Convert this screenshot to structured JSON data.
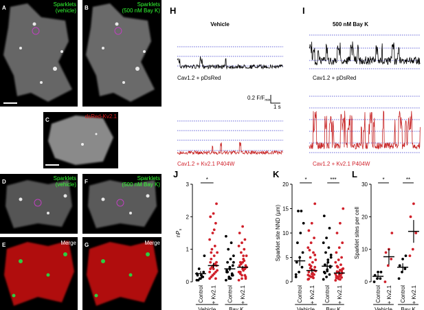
{
  "panels": {
    "A": {
      "label": "A",
      "caption": [
        "Sparklets",
        "(vehicle)"
      ]
    },
    "B": {
      "label": "B",
      "caption": [
        "Sparklets",
        "(500 nM Bay K)"
      ]
    },
    "C": {
      "label": "C",
      "caption": [
        "dsRed-Kv2.1"
      ]
    },
    "D": {
      "label": "D",
      "caption": [
        "Sparklets",
        "(vehicle)"
      ]
    },
    "E": {
      "label": "E",
      "caption": [
        "Merge"
      ]
    },
    "F": {
      "label": "F",
      "caption": [
        "Sparklets",
        "(500 nM Bay K)"
      ]
    },
    "G": {
      "label": "G",
      "caption": [
        "Merge"
      ]
    },
    "H": {
      "label": "H",
      "title": "Vehicle",
      "trace_labels": [
        "Cav1.2 + pDsRed",
        "Cav1.2 + Kv2.1 P404W"
      ]
    },
    "I": {
      "label": "I",
      "title": "500 nM Bay K",
      "trace_labels": [
        "Cav1.2 + pDsRed",
        "Cav1.2 + Kv2.1 P404W"
      ]
    }
  },
  "scale_bar": {
    "y_label": "0.2 F/F",
    "y_subscript": "min",
    "x_label": "1 s"
  },
  "chart_data": [
    {
      "type": "strip",
      "label": "J",
      "ylabel": "nP",
      "ylabel_subscript": "s",
      "categories": [
        "Control",
        "+ Kv2.1",
        "Control",
        "+ Kv2.1"
      ],
      "group_labels": [
        "Vehicle",
        "Bay K"
      ],
      "colors": [
        "#000000",
        "#d0202a",
        "#000000",
        "#d0202a"
      ],
      "points": [
        [
          0.05,
          0.1,
          0.15,
          0.2,
          0.1,
          0.3,
          0.05,
          0.2,
          0.8,
          0.4,
          0.15,
          0.25
        ],
        [
          0.1,
          0.2,
          0.3,
          0.4,
          0.5,
          0.6,
          0.7,
          0.8,
          0.9,
          1.0,
          1.1,
          1.3,
          1.5,
          1.8,
          2.0,
          2.1,
          2.4,
          0.15,
          0.25,
          0.35,
          0.45,
          0.55,
          0.3,
          0.2,
          0.1,
          0.6,
          0.4,
          0.5,
          0.9,
          1.6
        ],
        [
          0.05,
          0.1,
          0.2,
          0.3,
          0.4,
          0.5,
          0.6,
          0.7,
          0.8,
          1.0,
          1.2,
          1.4,
          0.15,
          0.25,
          0.35,
          0.45,
          0.2,
          0.3,
          0.1,
          0.6
        ],
        [
          0.05,
          0.1,
          0.2,
          0.3,
          0.4,
          0.5,
          0.6,
          0.7,
          0.8,
          0.9,
          1.0,
          1.1,
          1.2,
          1.3,
          1.5,
          1.7,
          0.15,
          0.25,
          0.35,
          0.45,
          0.55,
          0.65,
          0.3,
          0.2,
          0.4,
          0.5,
          0.6,
          0.1,
          0.3,
          0.8
        ]
      ],
      "means": [
        0.25,
        0.5,
        0.4,
        0.45
      ],
      "sems": [
        0.08,
        0.08,
        0.07,
        0.04
      ],
      "significance": [
        "*",
        null
      ],
      "ylim": [
        0,
        3
      ],
      "yticks": [
        0,
        1,
        2,
        3
      ]
    },
    {
      "type": "strip",
      "label": "K",
      "ylabel": "Sparklet site NND (µm)",
      "categories": [
        "Control",
        "+ Kv2.1",
        "Control",
        "+ Kv2.1"
      ],
      "group_labels": [
        "Vehicle",
        "Bay K"
      ],
      "colors": [
        "#000000",
        "#d0202a",
        "#000000",
        "#d0202a"
      ],
      "points": [
        [
          1.0,
          2.0,
          3.0,
          4.0,
          5.0,
          6.0,
          8.0,
          10.0,
          12.0,
          14.5,
          14.5,
          1.5
        ],
        [
          0.5,
          1.0,
          1.5,
          2.0,
          2.5,
          3.0,
          3.5,
          4.0,
          4.5,
          5.0,
          6.0,
          7.0,
          8.0,
          9.0,
          10.5,
          12.0,
          16.0,
          1.2,
          1.8,
          2.2,
          2.8,
          0.8,
          1.4,
          3.2,
          2.4,
          0.6,
          1.6,
          5.5,
          6.5,
          1.1
        ],
        [
          0.5,
          1.0,
          1.5,
          2.0,
          2.5,
          3.0,
          3.5,
          4.0,
          5.0,
          6.0,
          7.0,
          8.0,
          9.0,
          11.0,
          13.5,
          2.2,
          3.2,
          1.8,
          4.5,
          5.5
        ],
        [
          0.3,
          0.6,
          0.9,
          1.2,
          1.5,
          1.8,
          2.1,
          2.4,
          2.7,
          3.0,
          3.5,
          4.0,
          4.5,
          5.0,
          6.0,
          7.0,
          8.0,
          10.0,
          12.0,
          15.0,
          1.0,
          1.4,
          1.6,
          2.0,
          2.2,
          0.8,
          1.1,
          2.6,
          3.2,
          0.5
        ]
      ],
      "means": [
        4.3,
        2.3,
        3.2,
        1.8
      ],
      "sems": [
        1.0,
        0.4,
        0.6,
        0.3
      ],
      "significance": [
        "*",
        "***"
      ],
      "ylim": [
        0,
        20
      ],
      "yticks": [
        0,
        5,
        10,
        15,
        20
      ]
    },
    {
      "type": "strip",
      "label": "L",
      "ylabel": "Sparklet sites per cell",
      "categories": [
        "Control",
        "+ Kv2.1",
        "Control",
        "+ Kv2.1"
      ],
      "group_labels": [
        "Vehicle",
        "Bay K"
      ],
      "colors": [
        "#000000",
        "#d0202a",
        "#000000",
        "#d0202a"
      ],
      "points": [
        [
          0,
          1,
          1,
          2,
          3,
          3
        ],
        [
          0,
          5,
          7,
          9,
          10,
          15
        ],
        [
          1,
          3,
          4,
          5,
          7,
          8
        ],
        [
          8,
          10,
          15,
          20,
          24
        ]
      ],
      "means": [
        1.7,
        7.7,
        4.5,
        15.5
      ],
      "sems": [
        0.8,
        2.4,
        1.2,
        3.5
      ],
      "significance": [
        "*",
        "**"
      ],
      "ylim": [
        0,
        30
      ],
      "yticks": [
        0,
        10,
        20,
        30
      ]
    }
  ]
}
